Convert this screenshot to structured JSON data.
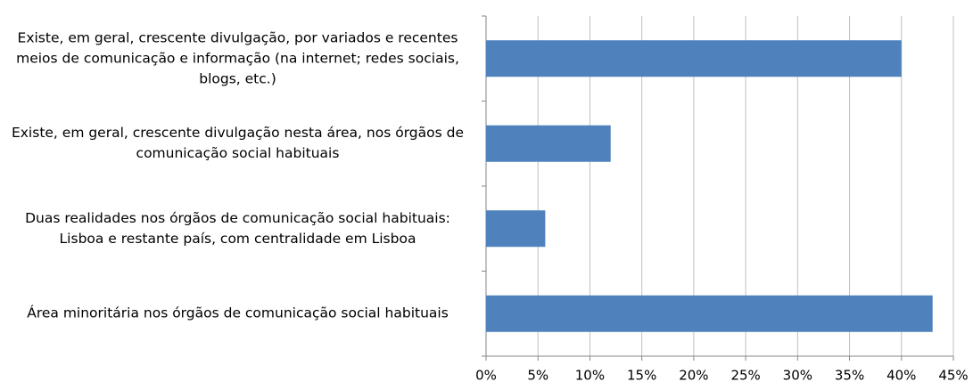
{
  "chart_data": {
    "type": "bar",
    "orientation": "horizontal",
    "categories": [
      "Existe, em geral, crescente divulgação, por variados e recentes meios de comunicação e informação (na internet; redes sociais, blogs, etc.)",
      "Existe, em geral, crescente divulgação nesta área, nos órgãos de comunicação social habituais",
      "Duas realidades nos órgãos de comunicação social habituais: Lisboa e restante país, com centralidade em Lisboa",
      "Área minoritária nos órgãos de comunicação social habituais"
    ],
    "values": [
      40,
      12,
      5.7,
      43
    ],
    "color": "#4f81bd",
    "xlim": [
      0,
      45
    ],
    "xticks": [
      {
        "value": 0,
        "label": "0%"
      },
      {
        "value": 5,
        "label": "5%"
      },
      {
        "value": 10,
        "label": "10%"
      },
      {
        "value": 15,
        "label": "15%"
      },
      {
        "value": 20,
        "label": "20%"
      },
      {
        "value": 25,
        "label": "25%"
      },
      {
        "value": 30,
        "label": "30%"
      },
      {
        "value": 35,
        "label": "35%"
      },
      {
        "value": 40,
        "label": "40%"
      },
      {
        "value": 45,
        "label": "45%"
      }
    ],
    "grid": true
  }
}
